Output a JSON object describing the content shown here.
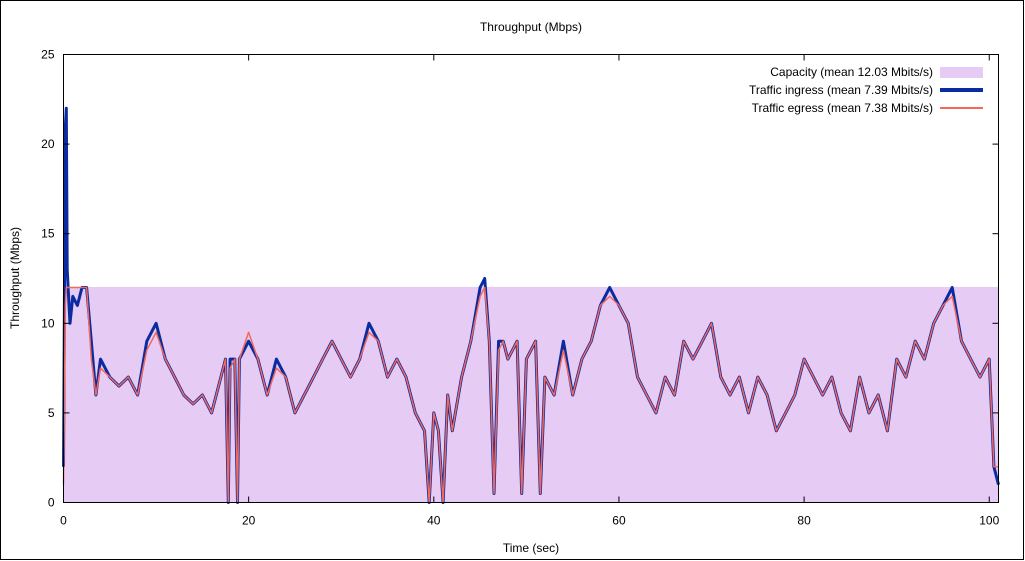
{
  "colors": {
    "capacity": "#e6ccf4",
    "ingress": "#0a2ca0",
    "egress": "#f4685a"
  },
  "chart_data": {
    "type": "line",
    "title": "Throughput (Mbps)",
    "xlabel": "Time (sec)",
    "ylabel": "Throughput (Mbps)",
    "xlim": [
      0,
      101
    ],
    "ylim": [
      0,
      25
    ],
    "xticks": [
      "0",
      "20",
      "40",
      "60",
      "80",
      "100"
    ],
    "yticks": [
      "0",
      "5",
      "10",
      "15",
      "20",
      "25"
    ],
    "grid": false,
    "legend_position": "top-right",
    "legend": [
      "Capacity (mean 12.03 Mbits/s)",
      "Traffic ingress (mean 7.39 Mbits/s)",
      "Traffic egress (mean 7.38 Mbits/s)"
    ],
    "capacity": {
      "x": [
        0,
        101
      ],
      "y": [
        12.03,
        12.03
      ]
    },
    "series": [
      {
        "name": "Traffic ingress (mean 7.39 Mbits/s)",
        "x": [
          0,
          0.2,
          0.3,
          0.4,
          0.5,
          0.7,
          1,
          1.5,
          2,
          2.5,
          3,
          3.5,
          4,
          5,
          6,
          7,
          8,
          9,
          10,
          11,
          12,
          13,
          14,
          15,
          16,
          17,
          17.5,
          17.8,
          18,
          18.5,
          18.8,
          19,
          20,
          21,
          22,
          23,
          24,
          25,
          26,
          27,
          28,
          29,
          30,
          31,
          32,
          33,
          34,
          35,
          36,
          37,
          38,
          39,
          39.5,
          40,
          40.5,
          41,
          41.5,
          42,
          43,
          44,
          45,
          45.5,
          46,
          46.5,
          47,
          47.5,
          48,
          49,
          49.5,
          50,
          51,
          51.5,
          52,
          53,
          54,
          55,
          56,
          57,
          58,
          59,
          60,
          61,
          62,
          63,
          64,
          65,
          66,
          67,
          68,
          69,
          70,
          71,
          72,
          73,
          74,
          75,
          76,
          77,
          78,
          79,
          80,
          81,
          82,
          83,
          84,
          85,
          86,
          87,
          88,
          89,
          90,
          91,
          92,
          93,
          94,
          95,
          96,
          97,
          98,
          99,
          100,
          100.5,
          101
        ],
        "y": [
          2,
          21,
          22,
          13,
          12,
          10,
          11.5,
          11,
          12,
          12,
          9,
          6,
          8,
          7,
          6.5,
          7,
          6,
          9,
          10,
          8,
          7,
          6,
          5.5,
          6,
          5,
          7,
          8,
          0,
          8,
          8,
          0,
          8,
          9,
          8,
          6,
          8,
          7,
          5,
          6,
          7,
          8,
          9,
          8,
          7,
          8,
          10,
          9,
          7,
          8,
          7,
          5,
          4,
          0,
          5,
          4,
          0,
          6,
          4,
          7,
          9,
          12,
          12.5,
          9,
          0.5,
          9,
          9,
          8,
          9,
          0.5,
          8,
          9,
          0.5,
          7,
          6,
          9,
          6,
          8,
          9,
          11,
          12,
          11,
          10,
          7,
          6,
          5,
          7,
          6,
          9,
          8,
          9,
          10,
          7,
          6,
          7,
          5,
          7,
          6,
          4,
          5,
          6,
          8,
          7,
          6,
          7,
          5,
          4,
          7,
          5,
          6,
          4,
          8,
          7,
          9,
          8,
          10,
          11,
          12,
          9,
          8,
          7,
          8,
          2,
          1
        ]
      },
      {
        "name": "Traffic egress (mean 7.38 Mbits/s)",
        "x": [
          0,
          0.2,
          0.3,
          0.4,
          0.5,
          0.7,
          1,
          1.5,
          2,
          2.5,
          3,
          3.5,
          4,
          5,
          6,
          7,
          8,
          9,
          10,
          11,
          12,
          13,
          14,
          15,
          16,
          17,
          17.5,
          17.8,
          18,
          18.5,
          18.8,
          19,
          20,
          21,
          22,
          23,
          24,
          25,
          26,
          27,
          28,
          29,
          30,
          31,
          32,
          33,
          34,
          35,
          36,
          37,
          38,
          39,
          39.5,
          40,
          40.5,
          41,
          41.5,
          42,
          43,
          44,
          45,
          45.5,
          46,
          46.5,
          47,
          47.5,
          48,
          49,
          49.5,
          50,
          51,
          51.5,
          52,
          53,
          54,
          55,
          56,
          57,
          58,
          59,
          60,
          61,
          62,
          63,
          64,
          65,
          66,
          67,
          68,
          69,
          70,
          71,
          72,
          73,
          74,
          75,
          76,
          77,
          78,
          79,
          80,
          81,
          82,
          83,
          84,
          85,
          86,
          87,
          88,
          89,
          90,
          91,
          92,
          93,
          94,
          95,
          96,
          97,
          98,
          99,
          100,
          100.5,
          101
        ],
        "y": [
          1,
          11,
          12,
          12,
          12,
          12,
          12,
          12,
          12,
          12,
          8,
          6,
          7.5,
          7,
          6.5,
          7,
          6,
          8.5,
          9.5,
          8,
          7,
          6,
          5.5,
          6,
          5,
          7,
          8,
          0,
          7.5,
          8,
          0,
          8,
          9.5,
          8,
          6,
          7.5,
          7,
          5,
          6,
          7,
          8,
          9,
          8,
          7,
          8,
          9.5,
          9,
          7,
          8,
          7,
          5,
          4,
          0,
          5,
          4,
          0,
          6,
          4,
          7,
          9,
          11.5,
          12,
          9,
          0.5,
          8.5,
          9,
          8,
          9,
          0.5,
          8,
          9,
          0.5,
          7,
          6,
          8.5,
          6,
          8,
          9,
          11,
          11.5,
          11,
          10,
          7,
          6,
          5,
          7,
          6,
          9,
          8,
          9,
          10,
          7,
          6,
          7,
          5,
          7,
          6,
          4,
          5,
          6,
          8,
          7,
          6,
          7,
          5,
          4,
          7,
          5,
          6,
          4,
          8,
          7,
          9,
          8,
          10,
          11,
          11.5,
          9,
          8,
          7,
          8,
          2,
          2
        ]
      }
    ]
  }
}
